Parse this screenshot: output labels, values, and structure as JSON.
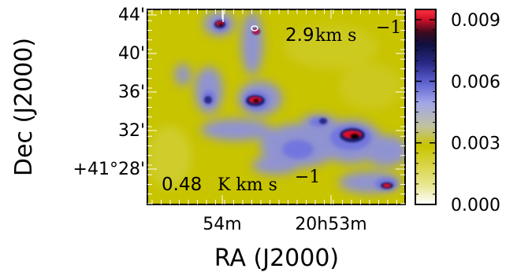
{
  "chart_data": {
    "type": "heatmap",
    "xlabel": "RA (J2000)",
    "ylabel": "Dec (J2000)",
    "x_ticks": [
      "54m",
      "20h53m"
    ],
    "y_ticks": [
      "44'",
      "40'",
      "36'",
      "32'",
      "+41°28'"
    ],
    "colorbar": {
      "ticks": [
        "0.009",
        "0.006",
        "0.003",
        "0.000"
      ],
      "tick_values": [
        0.009,
        0.006,
        0.003,
        0.0
      ],
      "range": [
        0.0,
        0.0095
      ],
      "colormap": [
        "#ffffff",
        "#c8c400",
        "#8a8ee8",
        "#1a1a6a",
        "#000000",
        "#e0102a"
      ]
    },
    "velocity_label": "2.9",
    "velocity_unit": "km s",
    "velocity_exp": "−1",
    "contour_label": "0.48",
    "contour_unit": "K km s",
    "contour_exp": "−1",
    "emission_peaks": [
      {
        "ra": "20h54m01s",
        "dec": "41°43.5'",
        "value": 0.0095
      },
      {
        "ra": "20h53m42s",
        "dec": "41°43.2'",
        "value": 0.0075
      },
      {
        "ra": "20h53m45s",
        "dec": "41°34.5'",
        "value": 0.0092
      },
      {
        "ra": "20h52m53s",
        "dec": "41°30.8'",
        "value": 0.0095
      },
      {
        "ra": "20h52m34s",
        "dec": "41°25.8'",
        "value": 0.0088
      }
    ],
    "colors": {
      "background": "#c8c400",
      "medium": "#8a8ee8",
      "dense": "#1a1a6a",
      "peak": "#e0102a"
    }
  }
}
